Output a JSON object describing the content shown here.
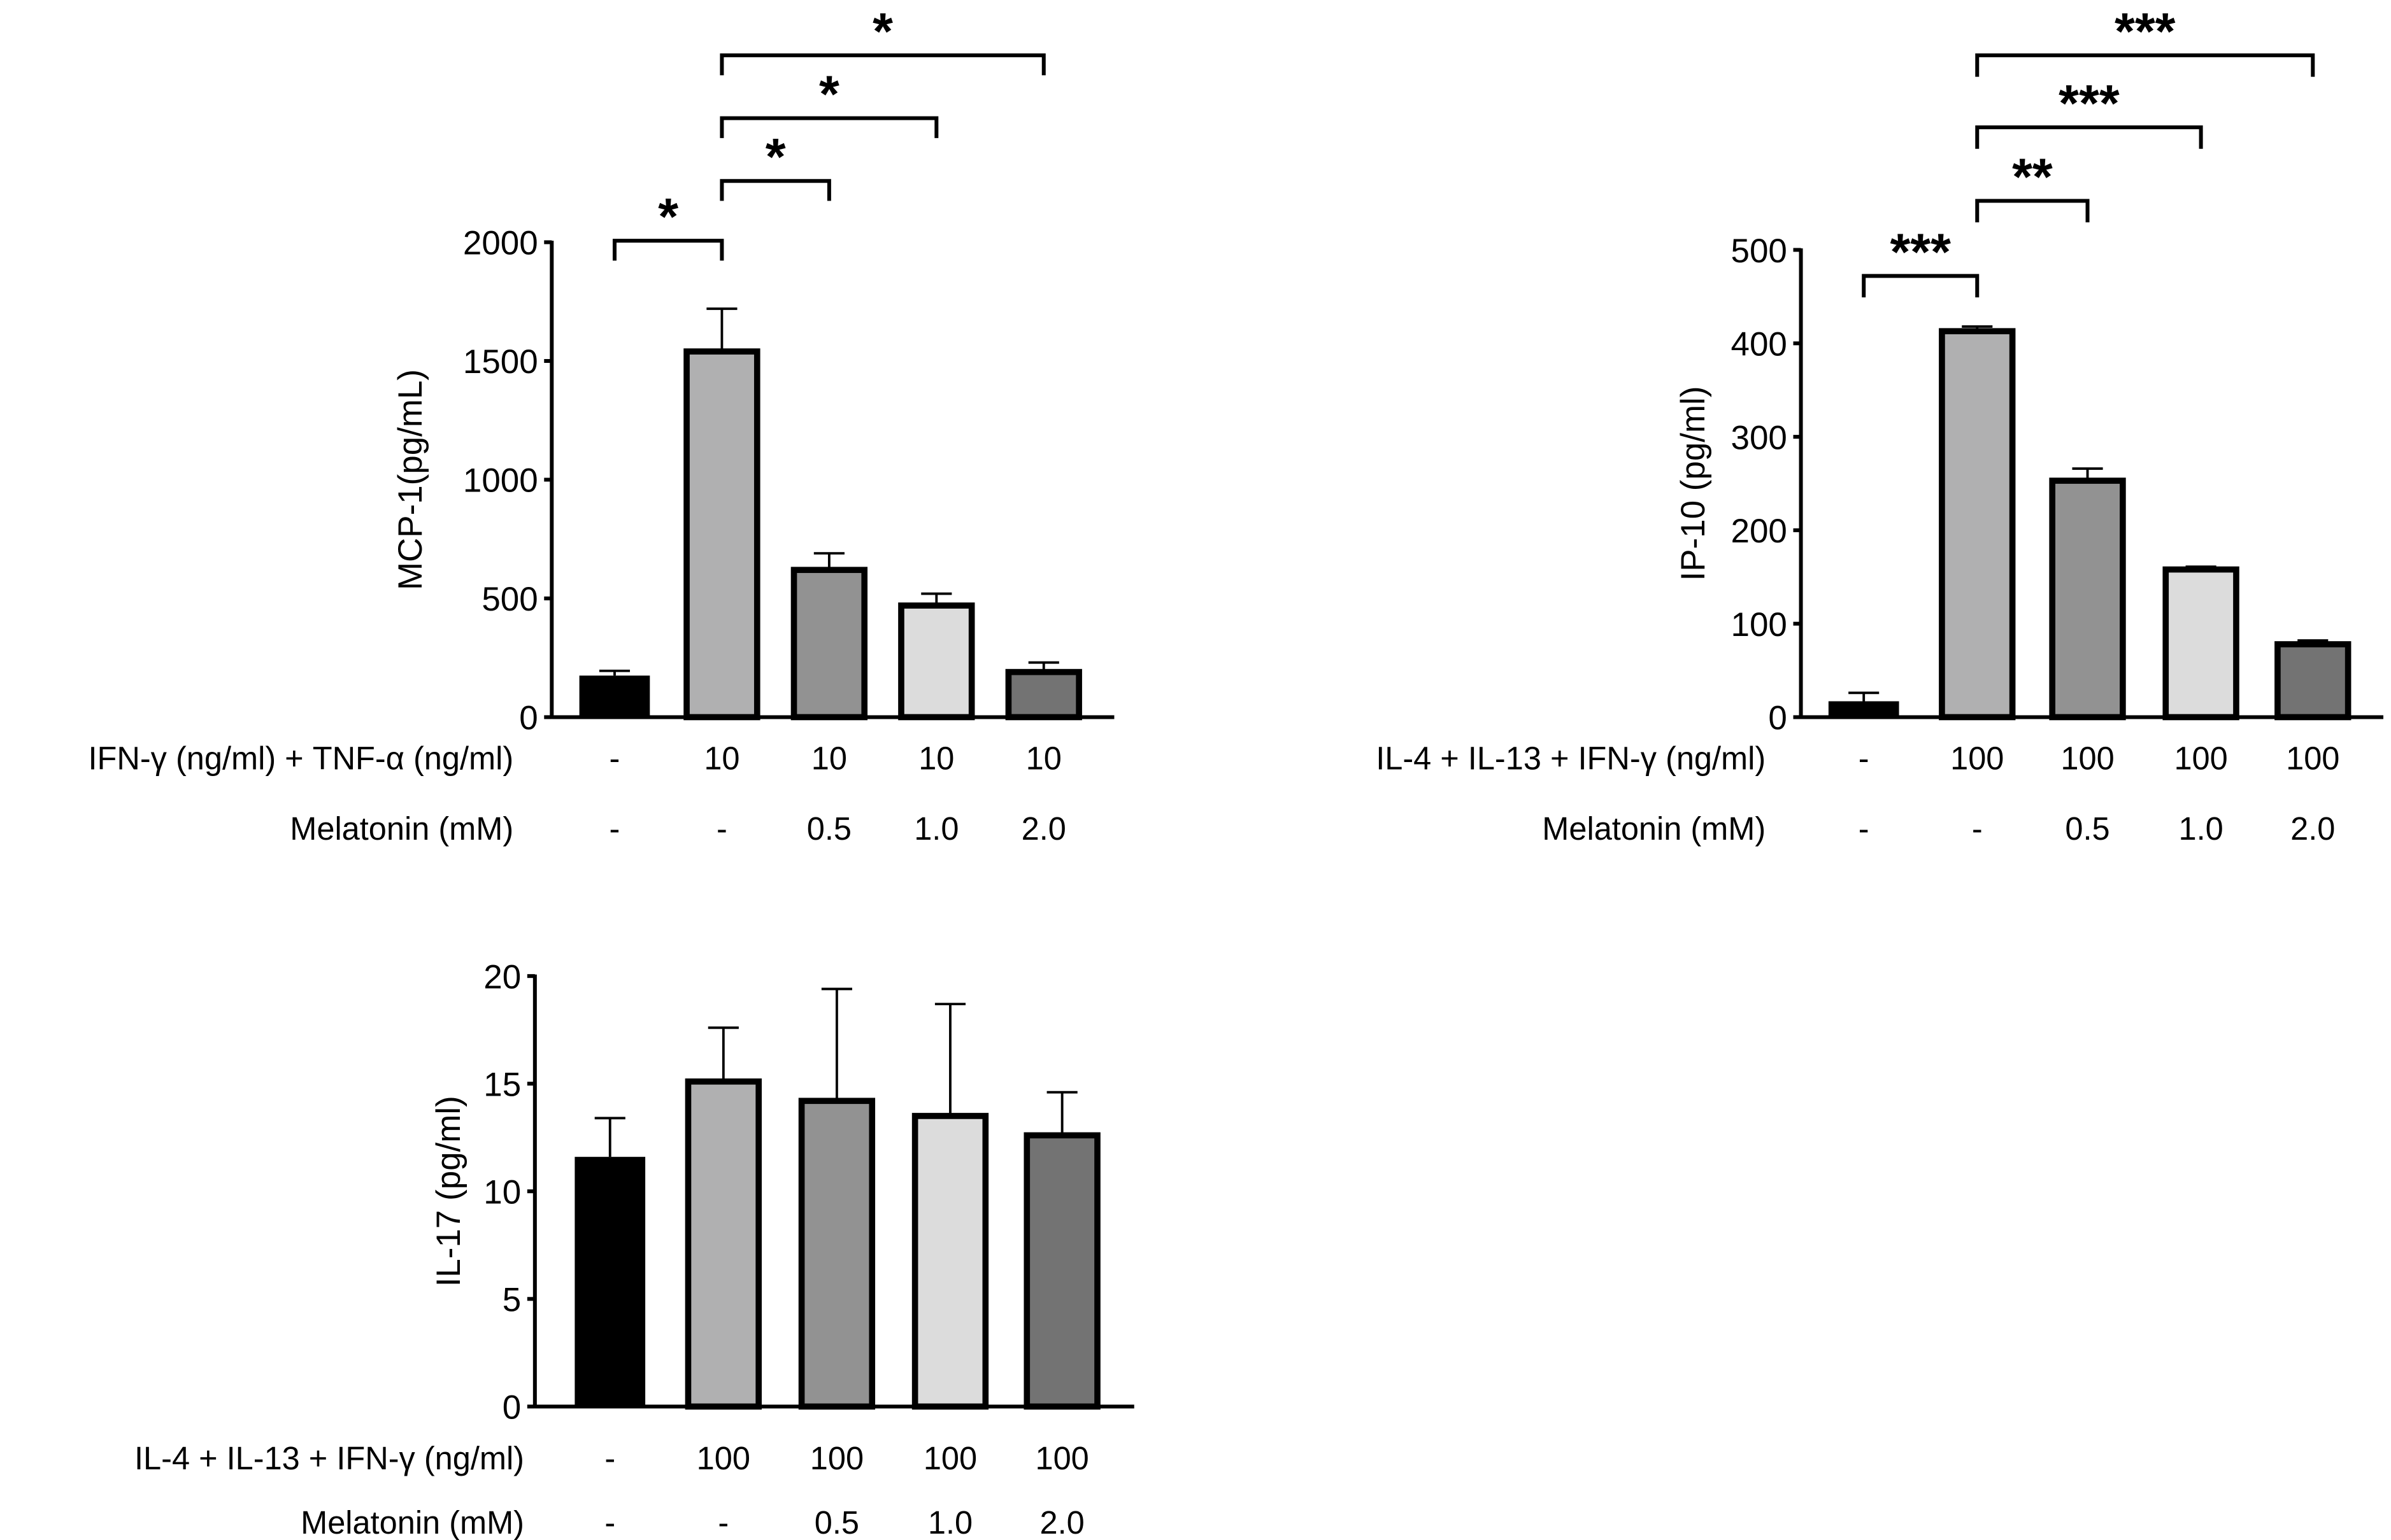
{
  "chart_data": [
    {
      "type": "bar",
      "ylabel": "MCP-1(pg/mL)",
      "ylim": [
        0,
        2000
      ],
      "yticks": [
        0,
        500,
        1000,
        1500,
        2000
      ],
      "values": [
        175,
        1540,
        620,
        470,
        190
      ],
      "errors": [
        20,
        180,
        70,
        50,
        40
      ],
      "colors": [
        "#000000",
        "#b0b0b1",
        "#929292",
        "#dcdcdc",
        "#737373"
      ],
      "rows": [
        {
          "label": "IFN-γ (ng/ml) + TNF-α (ng/ml)",
          "values": [
            "-",
            "10",
            "10",
            "10",
            "10"
          ]
        },
        {
          "label": "Melatonin (mM)",
          "values": [
            "-",
            "-",
            "0.5",
            "1.0",
            "2.0"
          ]
        }
      ],
      "significance": [
        {
          "from": 0,
          "to": 1,
          "label": "*"
        },
        {
          "from": 1,
          "to": 2,
          "label": "*"
        },
        {
          "from": 1,
          "to": 3,
          "label": "*"
        },
        {
          "from": 1,
          "to": 4,
          "label": "*"
        }
      ]
    },
    {
      "type": "bar",
      "ylabel": "IP-10 (pg/ml)",
      "ylim": [
        0,
        500
      ],
      "yticks": [
        0,
        100,
        200,
        300,
        400,
        500
      ],
      "values": [
        17,
        413,
        253,
        158,
        78
      ],
      "errors": [
        9,
        5,
        13,
        3,
        4
      ],
      "colors": [
        "#000000",
        "#b0b0b1",
        "#929292",
        "#dcdcdc",
        "#737373"
      ],
      "rows": [
        {
          "label": "IL-4 + IL-13 + IFN-γ (ng/ml)",
          "values": [
            "-",
            "100",
            "100",
            "100",
            "100"
          ]
        },
        {
          "label": "Melatonin (mM)",
          "values": [
            "-",
            "-",
            "0.5",
            "1.0",
            "2.0"
          ]
        }
      ],
      "significance": [
        {
          "from": 0,
          "to": 1,
          "label": "***"
        },
        {
          "from": 1,
          "to": 2,
          "label": "**"
        },
        {
          "from": 1,
          "to": 3,
          "label": "***"
        },
        {
          "from": 1,
          "to": 4,
          "label": "***"
        }
      ]
    },
    {
      "type": "bar",
      "ylabel": "IL-17 (pg/ml)",
      "ylim": [
        0,
        20
      ],
      "yticks": [
        0,
        5,
        10,
        15,
        20
      ],
      "values": [
        11.6,
        15.1,
        14.2,
        13.5,
        12.6
      ],
      "errors": [
        1.8,
        2.5,
        5.2,
        5.2,
        2.0
      ],
      "colors": [
        "#000000",
        "#b0b0b1",
        "#929292",
        "#dcdcdc",
        "#737373"
      ],
      "rows": [
        {
          "label": "IL-4 + IL-13 + IFN-γ (ng/ml)",
          "values": [
            "-",
            "100",
            "100",
            "100",
            "100"
          ]
        },
        {
          "label": "Melatonin (mM)",
          "values": [
            "-",
            "-",
            "0.5",
            "1.0",
            "2.0"
          ]
        }
      ],
      "significance": []
    }
  ]
}
